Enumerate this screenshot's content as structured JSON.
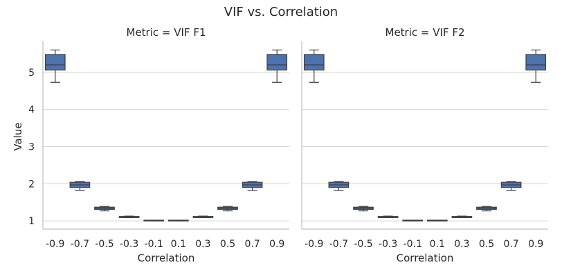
{
  "chart_data": {
    "type": "box",
    "title": "VIF vs. Correlation",
    "xlabel": "Correlation",
    "ylabel": "Value",
    "ylim": [
      0.78,
      5.85
    ],
    "yticks": [
      1,
      2,
      3,
      4,
      5
    ],
    "grid": true,
    "box_color": "#4c72b0",
    "categories": [
      "-0.9",
      "-0.7",
      "-0.5",
      "-0.3",
      "-0.1",
      "0.1",
      "0.3",
      "0.5",
      "0.7",
      "0.9"
    ],
    "panels": [
      {
        "title": "Metric = VIF F1",
        "boxes": [
          {
            "whislo": 4.73,
            "q1": 5.06,
            "med": 5.2,
            "q3": 5.48,
            "whishi": 5.6
          },
          {
            "whislo": 1.82,
            "q1": 1.9,
            "med": 1.97,
            "q3": 2.04,
            "whishi": 2.06
          },
          {
            "whislo": 1.27,
            "q1": 1.31,
            "med": 1.34,
            "q3": 1.37,
            "whishi": 1.39
          },
          {
            "whislo": 1.09,
            "q1": 1.09,
            "med": 1.1,
            "q3": 1.12,
            "whishi": 1.13
          },
          {
            "whislo": 1.0,
            "q1": 1.0,
            "med": 1.01,
            "q3": 1.02,
            "whishi": 1.02
          },
          {
            "whislo": 1.0,
            "q1": 1.0,
            "med": 1.01,
            "q3": 1.02,
            "whishi": 1.02
          },
          {
            "whislo": 1.09,
            "q1": 1.09,
            "med": 1.1,
            "q3": 1.12,
            "whishi": 1.13
          },
          {
            "whislo": 1.27,
            "q1": 1.31,
            "med": 1.34,
            "q3": 1.37,
            "whishi": 1.39
          },
          {
            "whislo": 1.82,
            "q1": 1.9,
            "med": 1.97,
            "q3": 2.04,
            "whishi": 2.06
          },
          {
            "whislo": 4.73,
            "q1": 5.06,
            "med": 5.2,
            "q3": 5.48,
            "whishi": 5.6
          }
        ]
      },
      {
        "title": "Metric = VIF F2",
        "boxes": [
          {
            "whislo": 4.73,
            "q1": 5.06,
            "med": 5.2,
            "q3": 5.48,
            "whishi": 5.6
          },
          {
            "whislo": 1.82,
            "q1": 1.9,
            "med": 1.97,
            "q3": 2.04,
            "whishi": 2.06
          },
          {
            "whislo": 1.27,
            "q1": 1.31,
            "med": 1.34,
            "q3": 1.37,
            "whishi": 1.39
          },
          {
            "whislo": 1.09,
            "q1": 1.09,
            "med": 1.1,
            "q3": 1.12,
            "whishi": 1.13
          },
          {
            "whislo": 1.0,
            "q1": 1.0,
            "med": 1.01,
            "q3": 1.02,
            "whishi": 1.02
          },
          {
            "whislo": 1.0,
            "q1": 1.0,
            "med": 1.01,
            "q3": 1.02,
            "whishi": 1.02
          },
          {
            "whislo": 1.09,
            "q1": 1.09,
            "med": 1.1,
            "q3": 1.12,
            "whishi": 1.13
          },
          {
            "whislo": 1.27,
            "q1": 1.31,
            "med": 1.34,
            "q3": 1.37,
            "whishi": 1.39
          },
          {
            "whislo": 1.82,
            "q1": 1.9,
            "med": 1.97,
            "q3": 2.04,
            "whishi": 2.06
          },
          {
            "whislo": 4.73,
            "q1": 5.06,
            "med": 5.2,
            "q3": 5.48,
            "whishi": 5.6
          }
        ]
      }
    ]
  }
}
